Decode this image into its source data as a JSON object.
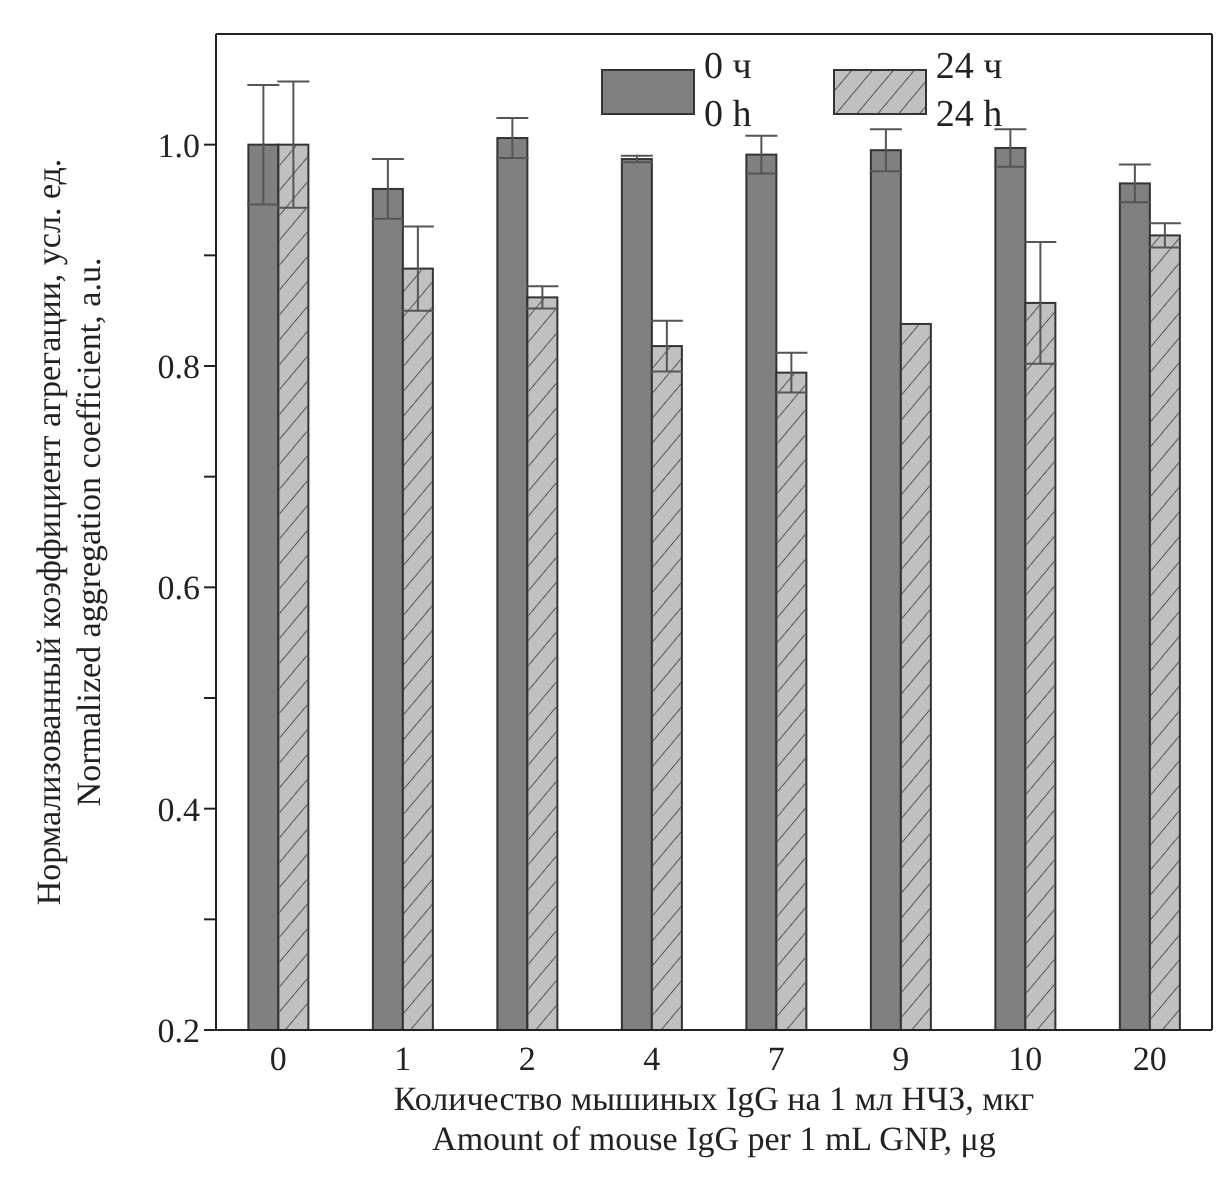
{
  "chart_data": {
    "type": "bar",
    "xlabel": "Количество мышиных IgG на 1 мл НЧЗ, мкг\nAmount of mouse IgG per 1 mL GNP, μg",
    "ylabel": "Нормализованный коэффициент агрегации, усл. ед.\nNormalized aggregation coefficient, a.u.",
    "categories": [
      "0",
      "1",
      "2",
      "4",
      "7",
      "9",
      "10",
      "20"
    ],
    "series": [
      {
        "name": "0 ч\n0 h",
        "color": "#808080",
        "values": [
          1.0,
          0.96,
          1.006,
          0.987,
          0.991,
          0.995,
          0.997,
          0.965
        ],
        "errors": [
          0.054,
          0.027,
          0.018,
          0.003,
          0.017,
          0.019,
          0.017,
          0.017
        ]
      },
      {
        "name": "24 ч\n24 h",
        "color": "#c0c0c0",
        "values": [
          1.0,
          0.888,
          0.862,
          0.818,
          0.794,
          0.838,
          0.857,
          0.918
        ],
        "errors": [
          0.057,
          0.038,
          0.01,
          0.023,
          0.018,
          null,
          0.055,
          0.011
        ]
      }
    ],
    "ylim": [
      0.2,
      1.1
    ],
    "yticks": [
      0.2,
      {
        "value": 0.3,
        "label": null
      },
      0.4,
      {
        "value": 0.5,
        "label": null
      },
      0.6,
      {
        "value": 0.7,
        "label": null
      },
      0.8,
      {
        "value": 0.9,
        "label": null
      },
      {
        "value": 1,
        "label": "1.0"
      }
    ],
    "legend": "top right"
  }
}
